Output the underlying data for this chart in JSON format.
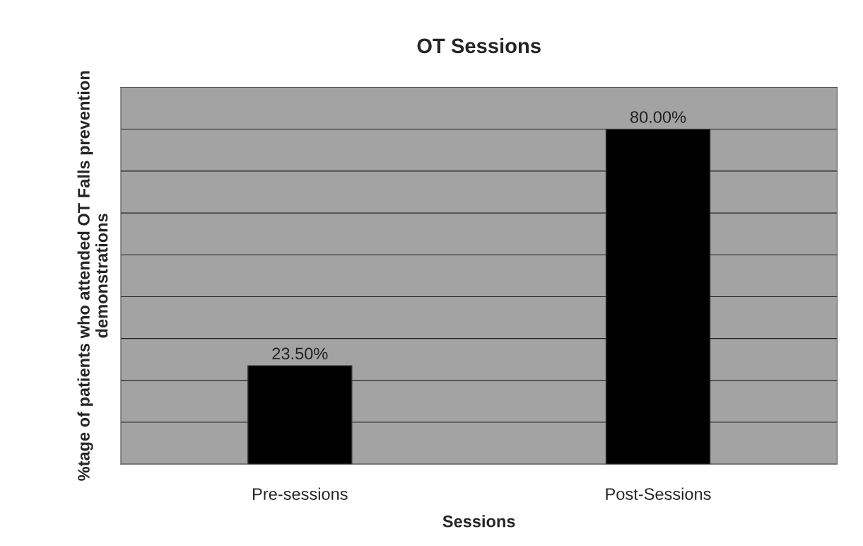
{
  "chart_data": {
    "type": "bar",
    "title": "OT Sessions",
    "xlabel": "Sessions",
    "ylabel": "%tage of patients who attended OT Falls prevention demonstrations",
    "categories": [
      "Pre-sessions",
      "Post-Sessions"
    ],
    "values": [
      23.5,
      80
    ],
    "value_labels": [
      "23.50%",
      "80.00%"
    ],
    "color": "#000000",
    "ylim": [
      0,
      90
    ],
    "yticks": [
      {
        "value": 0,
        "label": null
      },
      {
        "value": 10,
        "label": null
      },
      {
        "value": 20,
        "label": null
      },
      {
        "value": 30,
        "label": null
      },
      {
        "value": 40,
        "label": null
      },
      {
        "value": 50,
        "label": null
      },
      {
        "value": 60,
        "label": null
      },
      {
        "value": 70,
        "label": null
      },
      {
        "value": 80,
        "label": null
      },
      {
        "value": 90,
        "label": null
      }
    ],
    "tick_labels": "x",
    "grid": "y"
  }
}
